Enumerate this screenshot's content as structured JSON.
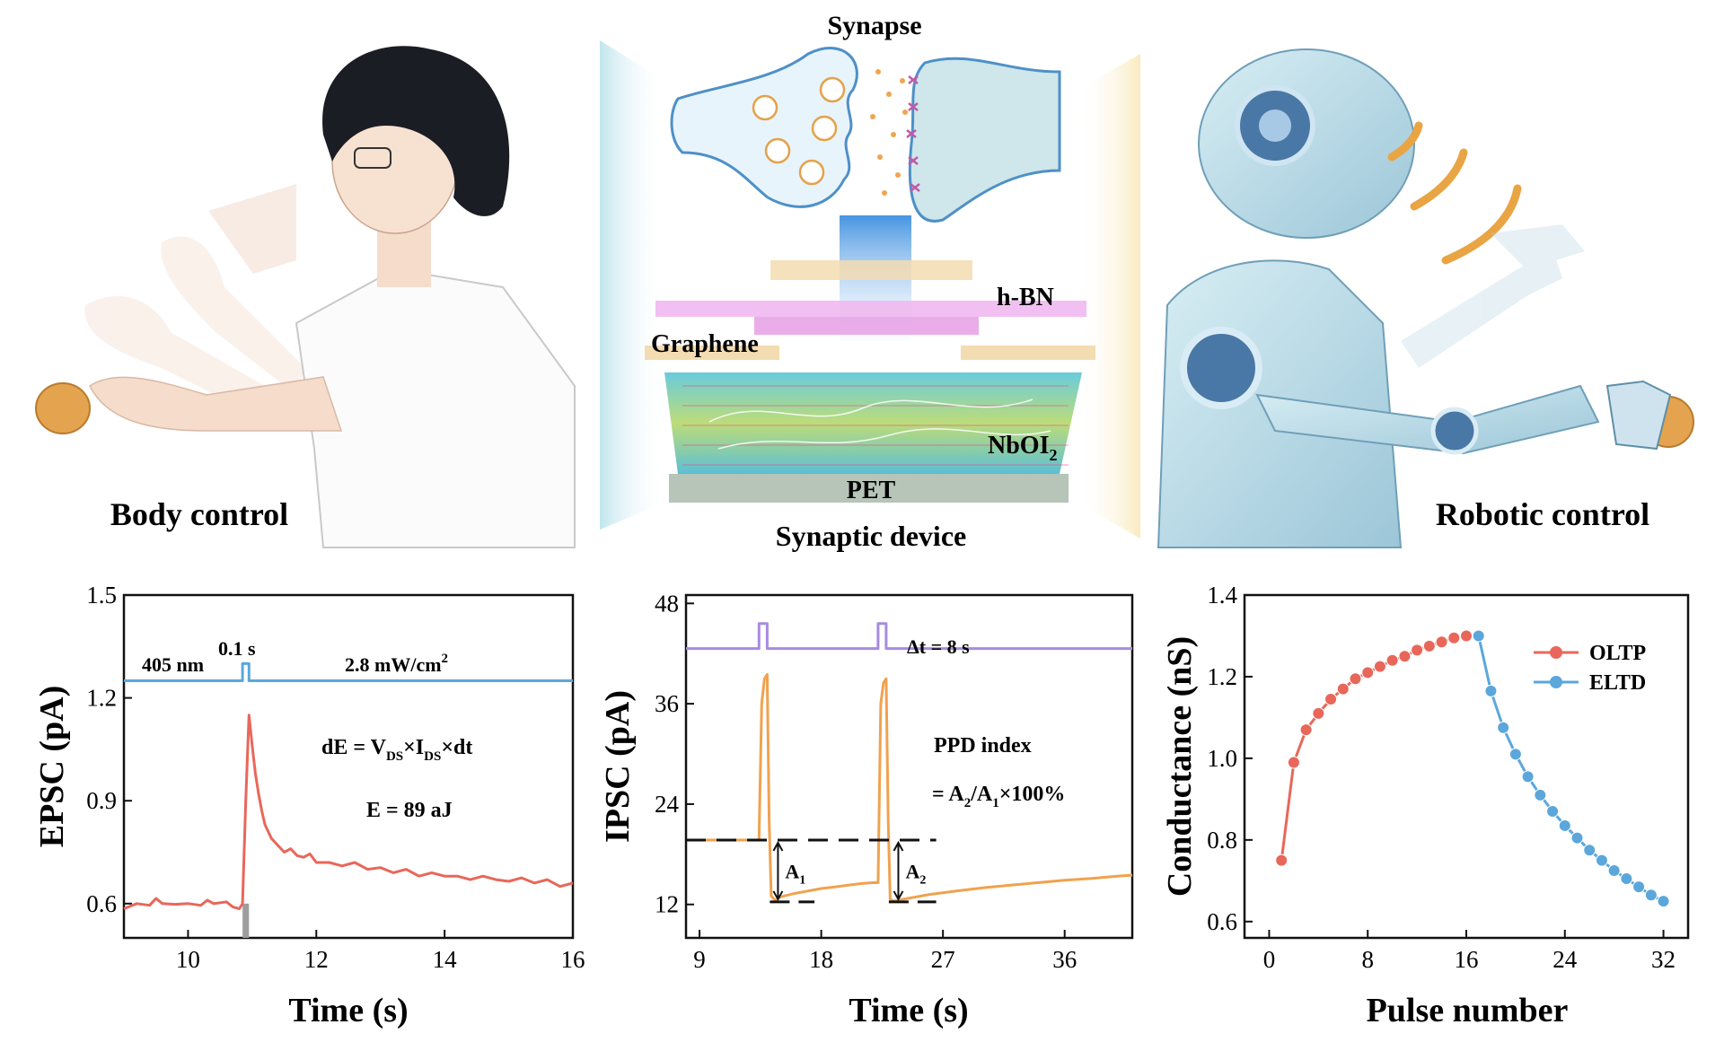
{
  "illustration": {
    "left_label": "Body control",
    "right_label": "Robotic control",
    "synapse_title": "Synapse",
    "device_title": "Synaptic device",
    "layers": {
      "hbn": "h-BN",
      "graphene": "Graphene",
      "nboi": "NbOI",
      "nboi_sub": "2",
      "pet": "PET"
    }
  },
  "colors": {
    "epsc_line": "#e8675a",
    "pulse_line": "#5ba7dc",
    "ipsc_line": "#f0a24e",
    "ipsc_pulse": "#a78be0",
    "oltp": "#e8675a",
    "eltd": "#5ba7dc"
  },
  "chart_data": [
    {
      "type": "line",
      "id": "epsc",
      "xlabel": "Time (s)",
      "ylabel": "EPSC (pA)",
      "xlim": [
        9,
        16
      ],
      "ylim": [
        0.5,
        1.5
      ],
      "xticks": [
        "10",
        "12",
        "14",
        "16"
      ],
      "xtick_values": [
        10,
        12,
        14,
        16
      ],
      "yticks": [
        "0.6",
        "0.9",
        "1.2",
        "1.5"
      ],
      "ytick_values": [
        0.6,
        0.9,
        1.2,
        1.5
      ],
      "annotations": {
        "wavelength": "405 nm",
        "duration": "0.1 s",
        "intensity": "2.8 mW/cm",
        "intensity_sup": "2",
        "formula": "dE = V",
        "formula_sub1": "DS",
        "formula_mid": "×I",
        "formula_sub2": "DS",
        "formula_end": "×dt",
        "energy": "E = 89 aJ"
      },
      "pulse": {
        "baseline": 1.25,
        "high": 1.3,
        "start": 10.85,
        "end": 10.95
      },
      "series": [
        {
          "x": [
            9.0,
            9.2,
            9.4,
            9.5,
            9.6,
            9.8,
            10.0,
            10.2,
            10.3,
            10.4,
            10.6,
            10.7,
            10.8,
            10.85,
            10.9,
            10.95,
            11.0,
            11.05,
            11.1,
            11.15,
            11.2,
            11.3,
            11.4,
            11.5,
            11.6,
            11.7,
            11.8,
            11.9,
            12.0,
            12.2,
            12.4,
            12.6,
            12.8,
            13.0,
            13.2,
            13.4,
            13.6,
            13.8,
            14.0,
            14.2,
            14.4,
            14.6,
            14.8,
            15.0,
            15.2,
            15.4,
            15.6,
            15.8,
            16.0
          ],
          "y": [
            0.585,
            0.6,
            0.595,
            0.615,
            0.6,
            0.598,
            0.6,
            0.595,
            0.61,
            0.6,
            0.605,
            0.59,
            0.585,
            0.6,
            0.9,
            1.15,
            1.06,
            0.98,
            0.92,
            0.87,
            0.83,
            0.79,
            0.77,
            0.75,
            0.76,
            0.74,
            0.735,
            0.745,
            0.72,
            0.72,
            0.71,
            0.72,
            0.7,
            0.705,
            0.69,
            0.7,
            0.68,
            0.69,
            0.68,
            0.68,
            0.67,
            0.68,
            0.67,
            0.665,
            0.675,
            0.66,
            0.67,
            0.65,
            0.66
          ]
        }
      ]
    },
    {
      "type": "line",
      "id": "ipsc",
      "xlabel": "Time (s)",
      "ylabel": "IPSC (pA)",
      "xlim": [
        8,
        41
      ],
      "ylim": [
        8,
        49
      ],
      "xticks": [
        "9",
        "18",
        "27",
        "36"
      ],
      "xtick_values": [
        9,
        18,
        27,
        36
      ],
      "yticks": [
        "12",
        "24",
        "36",
        "48"
      ],
      "ytick_values": [
        12,
        24,
        36,
        48
      ],
      "annotations": {
        "delta_t": "Δt = 8 s",
        "ppd_title": "PPD index",
        "ppd_formula": "= A",
        "ppd_sub1": "2",
        "ppd_mid": "/A",
        "ppd_sub2": "1",
        "ppd_end": "×100%",
        "a1": "A",
        "a1_sub": "1",
        "a2": "A",
        "a2_sub": "2"
      },
      "pulse": {
        "baseline": 42.6,
        "high": 45.6,
        "pulses": [
          [
            13.4,
            14.0
          ],
          [
            22.2,
            22.8
          ]
        ]
      },
      "baseline_level": 19.7,
      "min_level": 12.3,
      "series": [
        {
          "x": [
            8.0,
            10.0,
            12.0,
            13.4,
            13.6,
            13.8,
            14.0,
            14.15,
            14.3,
            14.6,
            15.0,
            16.0,
            17.0,
            18.0,
            19.0,
            20.0,
            21.0,
            21.8,
            22.2,
            22.4,
            22.6,
            22.8,
            22.95,
            23.1,
            23.4,
            24.0,
            26.0,
            28.0,
            30.0,
            32.0,
            34.0,
            36.0,
            38.0,
            40.0,
            41.0
          ],
          "y": [
            19.7,
            19.7,
            19.7,
            19.7,
            36.0,
            39.0,
            39.5,
            22.0,
            13.0,
            12.5,
            12.9,
            13.3,
            13.6,
            13.9,
            14.1,
            14.3,
            14.5,
            14.6,
            14.6,
            36.0,
            38.5,
            39.0,
            22.0,
            12.6,
            12.4,
            12.6,
            13.2,
            13.6,
            14.0,
            14.3,
            14.6,
            14.9,
            15.1,
            15.4,
            15.5
          ]
        }
      ]
    },
    {
      "type": "scatter",
      "id": "conductance",
      "xlabel": "Pulse number",
      "ylabel": "Conductance (nS)",
      "xlim": [
        -2,
        34
      ],
      "ylim": [
        0.56,
        1.4
      ],
      "xticks": [
        "0",
        "8",
        "16",
        "24",
        "32"
      ],
      "xtick_values": [
        0,
        8,
        16,
        24,
        32
      ],
      "yticks": [
        "0.6",
        "0.8",
        "1.0",
        "1.2",
        "1.4"
      ],
      "ytick_values": [
        0.6,
        0.8,
        1.0,
        1.2,
        1.4
      ],
      "legend_position": "top-right",
      "series": [
        {
          "name": "OLTP",
          "x": [
            1,
            2,
            3,
            4,
            5,
            6,
            7,
            8,
            9,
            10,
            11,
            12,
            13,
            14,
            15,
            16,
            17
          ],
          "y": [
            0.75,
            0.99,
            1.07,
            1.11,
            1.145,
            1.17,
            1.195,
            1.21,
            1.225,
            1.24,
            1.25,
            1.265,
            1.275,
            1.285,
            1.295,
            1.3,
            1.3
          ]
        },
        {
          "name": "ELTD",
          "x": [
            17,
            18,
            19,
            20,
            21,
            22,
            23,
            24,
            25,
            26,
            27,
            28,
            29,
            30,
            31,
            32
          ],
          "y": [
            1.3,
            1.165,
            1.075,
            1.01,
            0.955,
            0.91,
            0.87,
            0.835,
            0.805,
            0.775,
            0.75,
            0.725,
            0.705,
            0.685,
            0.665,
            0.65
          ]
        }
      ]
    }
  ]
}
